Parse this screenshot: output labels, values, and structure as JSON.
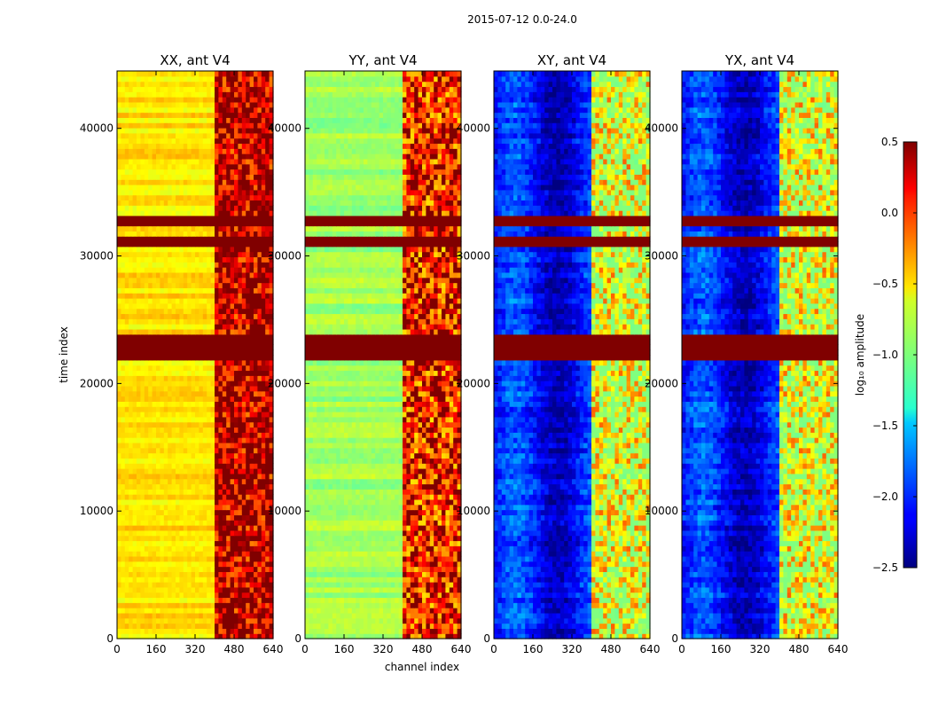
{
  "chart_data": {
    "type": "heatmap",
    "suptitle": "2015-07-12 0.0-24.0",
    "xlabel": "channel index",
    "ylabel": "time index",
    "xlim": [
      0,
      640
    ],
    "ylim": [
      0,
      44500
    ],
    "x_ticks": [
      "0",
      "160",
      "320",
      "480",
      "640"
    ],
    "y_ticks": [
      "0",
      "10000",
      "20000",
      "30000",
      "40000"
    ],
    "panels": [
      {
        "title": "XX, ant V4",
        "pol": "XX",
        "base_level": -0.55,
        "rfi_channels": [
          400,
          640
        ],
        "rfi_level": 0.2
      },
      {
        "title": "YY, ant V4",
        "pol": "YY",
        "base_level": -0.9,
        "rfi_channels": [
          400,
          640
        ],
        "rfi_level": -0.1
      },
      {
        "title": "XY, ant V4",
        "pol": "XY",
        "base_level": -2.1,
        "rfi_channels": [
          400,
          640
        ],
        "rfi_level": -0.6
      },
      {
        "title": "YX, ant V4",
        "pol": "YX",
        "base_level": -2.1,
        "rfi_channels": [
          400,
          640
        ],
        "rfi_level": -0.6
      }
    ],
    "flagged_time_bands": [
      [
        22000,
        24000
      ],
      [
        32400,
        33200
      ],
      [
        30800,
        31400
      ]
    ],
    "colorbar": {
      "label": "log₁₀ amplitude",
      "colormap": "jet",
      "range": [
        -2.5,
        0.5
      ],
      "ticks": [
        "0.5",
        "0.0",
        "−0.5",
        "−1.0",
        "−1.5",
        "−2.0",
        "−2.5"
      ]
    }
  }
}
